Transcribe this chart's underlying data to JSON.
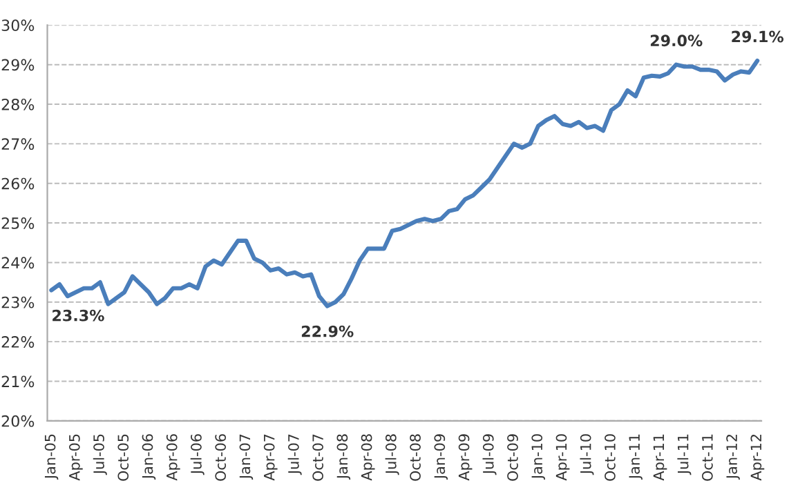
{
  "chart_data": {
    "type": "line",
    "categories": [
      "Jan-05",
      null,
      null,
      "Apr-05",
      null,
      null,
      "Jul-05",
      null,
      null,
      "Oct-05",
      null,
      null,
      "Jan-06",
      null,
      null,
      "Apr-06",
      null,
      null,
      "Jul-06",
      null,
      null,
      "Oct-06",
      null,
      null,
      "Jan-07",
      null,
      null,
      "Apr-07",
      null,
      null,
      "Jul-07",
      null,
      null,
      "Oct-07",
      null,
      null,
      "Jan-08",
      null,
      null,
      "Apr-08",
      null,
      null,
      "Jul-08",
      null,
      null,
      "Oct-08",
      null,
      null,
      "Jan-09",
      null,
      null,
      "Apr-09",
      null,
      null,
      "Jul-09",
      null,
      null,
      "Oct-09",
      null,
      null,
      "Jan-10",
      null,
      null,
      "Apr-10",
      null,
      null,
      "Jul-10",
      null,
      null,
      "Oct-10",
      null,
      null,
      "Jan-11",
      null,
      null,
      "Apr-11",
      null,
      null,
      "Jul-11",
      null,
      null,
      "Oct-11",
      null,
      null,
      "Jan-12",
      null,
      null,
      "Apr-12"
    ],
    "series": [
      {
        "color": "#4a7ebb",
        "values": [
          23.3,
          23.45,
          23.15,
          23.25,
          23.35,
          23.35,
          23.5,
          22.95,
          23.1,
          23.25,
          23.65,
          23.45,
          23.25,
          22.95,
          23.1,
          23.35,
          23.35,
          23.45,
          23.35,
          23.9,
          24.05,
          23.95,
          24.25,
          24.55,
          24.55,
          24.1,
          24.0,
          23.8,
          23.85,
          23.7,
          23.75,
          23.65,
          23.7,
          23.15,
          22.9,
          23.0,
          23.2,
          23.6,
          24.05,
          24.35,
          24.35,
          24.35,
          24.8,
          24.85,
          24.95,
          25.05,
          25.1,
          25.05,
          25.1,
          25.3,
          25.35,
          25.6,
          25.7,
          25.9,
          26.1,
          26.4,
          26.7,
          27.0,
          26.9,
          27.0,
          27.45,
          27.6,
          27.7,
          27.5,
          27.45,
          27.55,
          27.4,
          27.45,
          27.33,
          27.85,
          28.0,
          28.35,
          28.2,
          28.67,
          28.72,
          28.7,
          28.78,
          29.0,
          28.95,
          28.95,
          28.87,
          28.87,
          28.83,
          28.6,
          28.75,
          28.83,
          28.8,
          29.1
        ]
      }
    ],
    "ylim": [
      20,
      30
    ],
    "yticks": [
      {
        "value": 20,
        "label": "20%"
      },
      {
        "value": 21,
        "label": "21%"
      },
      {
        "value": 22,
        "label": "22%"
      },
      {
        "value": 23,
        "label": "23%"
      },
      {
        "value": 24,
        "label": "24%"
      },
      {
        "value": 25,
        "label": "25%"
      },
      {
        "value": 26,
        "label": "26%"
      },
      {
        "value": 27,
        "label": "27%"
      },
      {
        "value": 28,
        "label": "28%"
      },
      {
        "value": 29,
        "label": "29%"
      },
      {
        "value": 30,
        "label": "30%"
      }
    ],
    "grid": "y",
    "legend": false,
    "marker": "none",
    "line_style": "solid",
    "annotations": [
      {
        "text": "23.3%",
        "y": 23.3
      },
      {
        "text": "22.9%",
        "y": 22.9
      },
      {
        "text": "29.0%",
        "y": 29.0
      },
      {
        "text": "29.1%",
        "y": 29.1
      }
    ]
  }
}
